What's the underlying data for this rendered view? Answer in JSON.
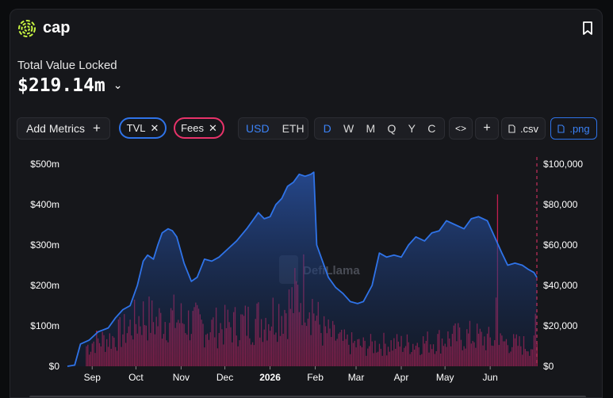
{
  "app": {
    "name": "cap",
    "icon": "cap-logo-icon",
    "bookmark_icon": "bookmark-icon"
  },
  "summary": {
    "label": "Total Value Locked",
    "value": "$219.14m"
  },
  "toolbar": {
    "add_metrics": "Add Metrics",
    "add_icon": "+",
    "pills": [
      {
        "label": "TVL",
        "color": "#2f73e8"
      },
      {
        "label": "Fees",
        "color": "#e8336a"
      }
    ],
    "currency": [
      "USD",
      "ETH"
    ],
    "currency_active": "USD",
    "intervals": [
      "D",
      "W",
      "M",
      "Q",
      "Y",
      "C"
    ],
    "interval_active": "D",
    "embed_icon": "<>",
    "plus_icon": "+",
    "csv": ".csv",
    "png": ".png"
  },
  "watermark": "DefiLlama",
  "chart_data": {
    "type": "area",
    "x_ticks": [
      "Sep",
      "Oct",
      "Nov",
      "Dec",
      "2026",
      "Feb",
      "Mar",
      "Apr",
      "May",
      "Jun"
    ],
    "y_left": {
      "ticks": [
        "$0",
        "$100m",
        "$200m",
        "$300m",
        "$400m",
        "$500m"
      ],
      "max": 500
    },
    "y_right": {
      "ticks": [
        "$0",
        "$20,000",
        "$40,000",
        "$60,000",
        "$80,000",
        "$100,000"
      ],
      "max": 100000
    },
    "series": [
      {
        "name": "TVL",
        "type": "area",
        "axis": "left",
        "color": "#2f73e8",
        "unit": "$m",
        "points": [
          [
            "Aug 15",
            0
          ],
          [
            "Aug 20",
            3
          ],
          [
            "Aug 24",
            55
          ],
          [
            "Aug 30",
            65
          ],
          [
            "Sep 5",
            85
          ],
          [
            "Sep 12",
            95
          ],
          [
            "Sep 17",
            120
          ],
          [
            "Sep 22",
            140
          ],
          [
            "Sep 27",
            150
          ],
          [
            "Oct 2",
            200
          ],
          [
            "Oct 6",
            260
          ],
          [
            "Oct 9",
            275
          ],
          [
            "Oct 13",
            265
          ],
          [
            "Oct 16",
            300
          ],
          [
            "Oct 19",
            330
          ],
          [
            "Oct 23",
            340
          ],
          [
            "Oct 26",
            335
          ],
          [
            "Oct 29",
            320
          ],
          [
            "Nov 3",
            255
          ],
          [
            "Nov 8",
            210
          ],
          [
            "Nov 12",
            220
          ],
          [
            "Nov 17",
            265
          ],
          [
            "Nov 22",
            260
          ],
          [
            "Nov 27",
            270
          ],
          [
            "Dec 3",
            290
          ],
          [
            "Dec 9",
            310
          ],
          [
            "Dec 16",
            340
          ],
          [
            "Dec 20",
            360
          ],
          [
            "Dec 24",
            380
          ],
          [
            "Dec 28",
            365
          ],
          [
            "Jan 1",
            370
          ],
          [
            "Jan 5",
            400
          ],
          [
            "Jan 9",
            415
          ],
          [
            "Jan 13",
            445
          ],
          [
            "Jan 17",
            455
          ],
          [
            "Jan 21",
            475
          ],
          [
            "Jan 25",
            470
          ],
          [
            "Jan 29",
            475
          ],
          [
            "Jan 31",
            480
          ],
          [
            "Feb 2",
            300
          ],
          [
            "Feb 6",
            260
          ],
          [
            "Feb 10",
            220
          ],
          [
            "Feb 15",
            195
          ],
          [
            "Feb 20",
            180
          ],
          [
            "Feb 25",
            160
          ],
          [
            "Mar 2",
            155
          ],
          [
            "Mar 6",
            160
          ],
          [
            "Mar 12",
            200
          ],
          [
            "Mar 17",
            280
          ],
          [
            "Mar 22",
            270
          ],
          [
            "Mar 27",
            275
          ],
          [
            "Apr 1",
            270
          ],
          [
            "Apr 6",
            300
          ],
          [
            "Apr 11",
            320
          ],
          [
            "Apr 17",
            310
          ],
          [
            "Apr 22",
            330
          ],
          [
            "Apr 27",
            335
          ],
          [
            "May 2",
            360
          ],
          [
            "May 8",
            350
          ],
          [
            "May 14",
            340
          ],
          [
            "May 19",
            365
          ],
          [
            "May 24",
            370
          ],
          [
            "May 30",
            360
          ],
          [
            "Jun 4",
            320
          ],
          [
            "Jun 9",
            280
          ],
          [
            "Jun 13",
            250
          ],
          [
            "Jun 18",
            255
          ],
          [
            "Jun 23",
            250
          ],
          [
            "Jun 27",
            240
          ],
          [
            "Jul 1",
            232
          ],
          [
            "Jul 3",
            220
          ]
        ]
      },
      {
        "name": "Fees",
        "type": "bar",
        "axis": "right",
        "color": "#c21f4f",
        "unit": "$",
        "note": "daily bars, mean around 13,000 with spikes",
        "summary_points": [
          [
            "Sep 1",
            12000
          ],
          [
            "Sep 15",
            14000
          ],
          [
            "Sep 25",
            18000
          ],
          [
            "Oct 5",
            25000
          ],
          [
            "Oct 15",
            22000
          ],
          [
            "Oct 25",
            24000
          ],
          [
            "Nov 5",
            22000
          ],
          [
            "Nov 20",
            19000
          ],
          [
            "Dec 5",
            20000
          ],
          [
            "Dec 20",
            22000
          ],
          [
            "Jan 1",
            25000
          ],
          [
            "Jan 15",
            30000
          ],
          [
            "Jan 25",
            40000
          ],
          [
            "Feb 5",
            18000
          ],
          [
            "Feb 20",
            12000
          ],
          [
            "Mar 5",
            10000
          ],
          [
            "Mar 20",
            11000
          ],
          [
            "Apr 5",
            11000
          ],
          [
            "Apr 20",
            12000
          ],
          [
            "May 5",
            14000
          ],
          [
            "May 20",
            15000
          ],
          [
            "Jun 5",
            12000
          ],
          [
            "Jun 6",
            85000
          ],
          [
            "Jun 15",
            11000
          ],
          [
            "Jul 1",
            10000
          ],
          [
            "Jul 2",
            26000
          ]
        ]
      }
    ]
  }
}
